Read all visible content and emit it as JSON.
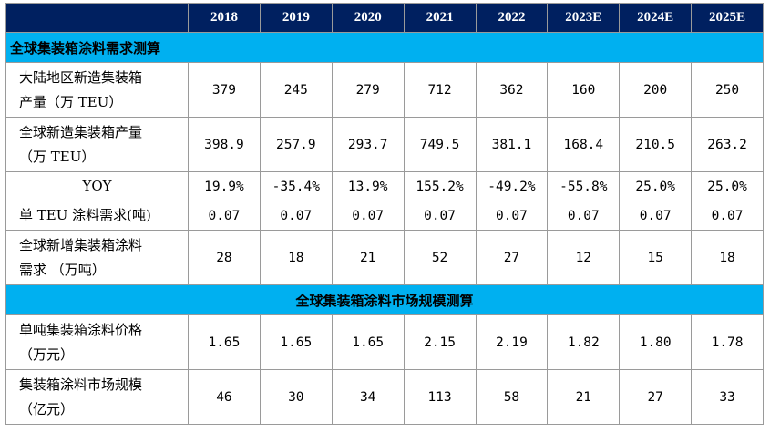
{
  "table": {
    "header_blank": "",
    "years": [
      "2018",
      "2019",
      "2020",
      "2021",
      "2022",
      "2023E",
      "2024E",
      "2025E"
    ],
    "section1_title": "全球集装箱涂料需求测算",
    "section2_title": "全球集装箱涂料市场规模测算",
    "rows": [
      {
        "label_line1": "大陆地区新造集装箱",
        "label_line2": "产量（万 TEU）",
        "values": [
          "379",
          "245",
          "279",
          "712",
          "362",
          "160",
          "200",
          "250"
        ]
      },
      {
        "label_line1": "全球新造集装箱产量",
        "label_line2": "（万 TEU）",
        "values": [
          "398.9",
          "257.9",
          "293.7",
          "749.5",
          "381.1",
          "168.4",
          "210.5",
          "263.2"
        ]
      },
      {
        "label_line1": "YOY",
        "label_line2": "",
        "values": [
          "19.9%",
          "-35.4%",
          "13.9%",
          "155.2%",
          "-49.2%",
          "-55.8%",
          "25.0%",
          "25.0%"
        ]
      },
      {
        "label_line1": "单 TEU 涂料需求(吨)",
        "label_line2": "",
        "values": [
          "0.07",
          "0.07",
          "0.07",
          "0.07",
          "0.07",
          "0.07",
          "0.07",
          "0.07"
        ]
      },
      {
        "label_line1": "全球新增集装箱涂料",
        "label_line2": "需求 （万吨）",
        "values": [
          "28",
          "18",
          "21",
          "52",
          "27",
          "12",
          "15",
          "18"
        ]
      },
      {
        "label_line1": "单吨集装箱涂料价格",
        "label_line2": "（万元）",
        "values": [
          "1.65",
          "1.65",
          "1.65",
          "2.15",
          "2.19",
          "1.82",
          "1.80",
          "1.78"
        ]
      },
      {
        "label_line1": "集装箱涂料市场规模",
        "label_line2": "（亿元）",
        "values": [
          "46",
          "30",
          "34",
          "113",
          "58",
          "21",
          "27",
          "33"
        ]
      }
    ]
  }
}
